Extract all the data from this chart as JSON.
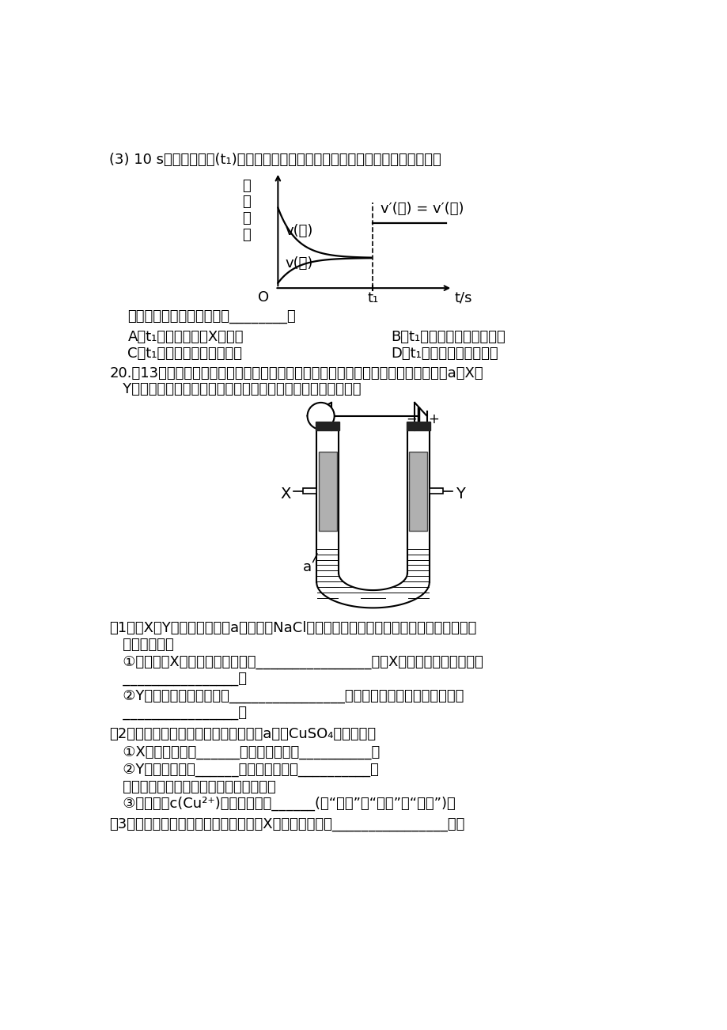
{
  "background_color": "#ffffff",
  "text_color": "#000000",
  "q3_text_1": "(3) 10 s后的某一时刻(t₁)改变了外界条件，其速率随时间的变化图象如图所示：",
  "then_text": "则下列说法符合该图象的是________。",
  "opt_A": "A．t₁时刻，增大了X的浓度",
  "opt_B": "B．t₁时刻，升高了体系温度",
  "opt_C": "C．t₁时刻，缩小了容器体积",
  "opt_D": "D．t₁时刻，使用了制化剂",
  "q20_line1": "20.（13分）电解原理在化学工业中有广泛的应用。下图表示一个电解池，装有电解液a；X、",
  "q20_line2": "   Y是两块电极板，通过导线与直流电源相连。请回答以下问题：",
  "sq1_1": "（1）若X、Y都是惰性电极，a是饱和的NaCl溶液，实验开始时，同时在两边各滴入几滴酟",
  "sq1_2": "   鑴试液，则：",
  "sq1_3": "   ①电解池中X极上的电极反应式为________________，在X极附近观察到的现象是",
  "sq1_4": "   ________________。",
  "sq1_5": "   ②Y电极上的电极反应式为________________，检验该电极反应产物的方法是",
  "sq1_6": "   ________________。",
  "sq2_1": "（2）如要用电解方法精炼粗铜，电解液a选用CuSO₄溶液，则：",
  "sq2_2": "   ①X电极的材料是______，电极反应式为__________。",
  "sq2_3": "   ②Y电极的材料是______，电极反应式为__________。",
  "sq2_4": "   （说明：杂质发生的电极反应不必写出）",
  "sq2_5": "   ③溶液中的c(Cu²⁺)与电解前相比______(填“变大”、“变小”或“不变”)。",
  "sq3_1": "（3）如利用该装置实现铁上镀锗，电极X上发生的反应为________________，电"
}
